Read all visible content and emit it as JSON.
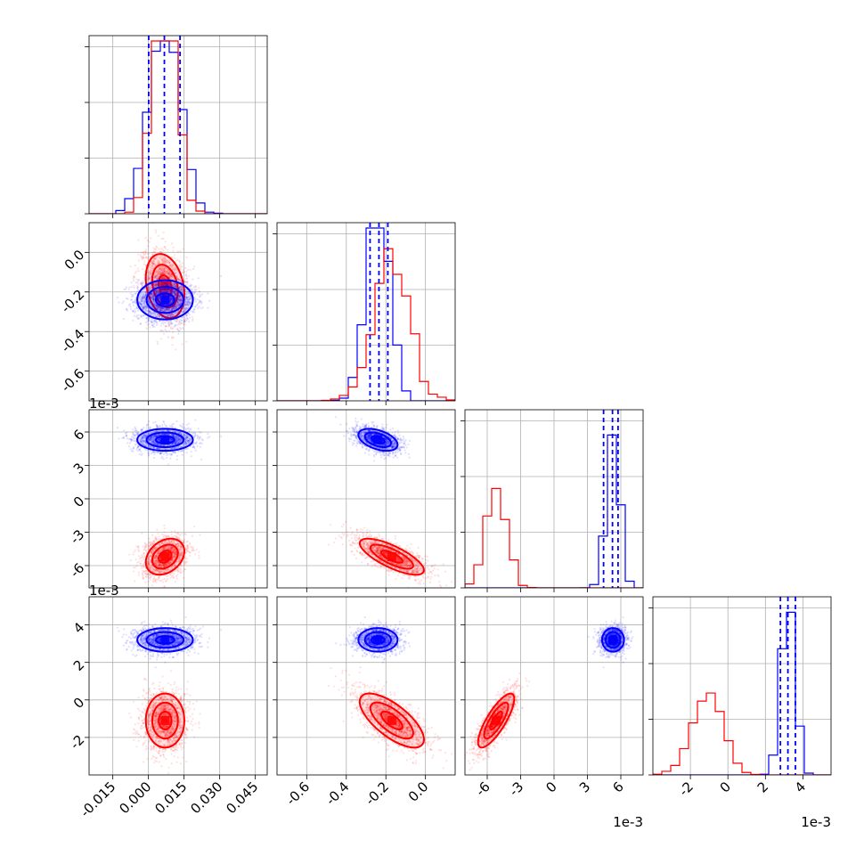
{
  "chart_data": {
    "type": "scatter",
    "subtype": "corner-plot",
    "grid": true,
    "colors": {
      "red": "#ff0000",
      "blue": "#0000ff"
    },
    "series": [
      {
        "color": "#0000ff",
        "means": [
          0.007,
          -0.24,
          0.0053,
          0.0032
        ],
        "sds": [
          0.0065,
          0.055,
          0.00055,
          0.00035
        ],
        "corr": {
          "1-0": 0.0,
          "2-0": 0.0,
          "2-1": -0.45,
          "3-0": 0.0,
          "3-1": 0.0,
          "3-2": 0.0
        }
      },
      {
        "color": "#ff0000",
        "means": [
          0.007,
          -0.17,
          -0.0052,
          -0.0011
        ],
        "sds": [
          0.0045,
          0.09,
          0.0009,
          0.0008
        ],
        "corr": {
          "1-0": -0.25,
          "2-0": 0.3,
          "2-1": -0.75,
          "3-0": 0.0,
          "3-1": -0.7,
          "3-2": 0.8
        }
      }
    ],
    "quantile_lines": [
      [
        0.0001,
        0.0067,
        0.0133
      ],
      [
        -0.28,
        -0.235,
        -0.19
      ],
      [
        0.00445,
        0.00525,
        0.00575
      ],
      [
        0.0028,
        0.0032,
        0.0036
      ]
    ],
    "hist_ymax": [
      0.2,
      0.24,
      0.58,
      0.48
    ],
    "axes": [
      {
        "range": [
          -0.025,
          0.05
        ],
        "ticks": [
          "-0.015",
          "0.000",
          "0.015",
          "0.030",
          "0.045"
        ],
        "values": [
          -0.015,
          0,
          0.015,
          0.03,
          0.045
        ]
      },
      {
        "range": [
          -0.75,
          0.15
        ],
        "ticks": [
          "-0.6",
          "-0.4",
          "-0.2",
          "0.0"
        ],
        "values": [
          -0.6,
          -0.4,
          -0.2,
          0.0
        ]
      },
      {
        "range": [
          -0.008,
          0.008
        ],
        "ticks": [
          "-6",
          "-3",
          "0",
          "3",
          "6"
        ],
        "values": [
          -0.006,
          -0.003,
          0,
          0.003,
          0.006
        ],
        "offset": "1e-3"
      },
      {
        "range": [
          -0.004,
          0.0055
        ],
        "ticks": [
          "-2",
          "0",
          "2",
          "4"
        ],
        "values": [
          -0.002,
          0,
          0.002,
          0.004
        ],
        "offset": "1e-3"
      }
    ]
  }
}
